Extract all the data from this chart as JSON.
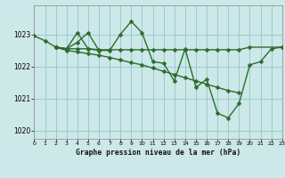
{
  "title": "Graphe pression niveau de la mer (hPa)",
  "bg_color": "#cce8e8",
  "grid_color": "#99cccc",
  "line_color": "#2d6b2d",
  "xlim": [
    0,
    23
  ],
  "ylim": [
    1019.75,
    1023.9
  ],
  "yticks": [
    1020,
    1021,
    1022,
    1023
  ],
  "xtick_pos": [
    0,
    1,
    2,
    3,
    4,
    5,
    6,
    7,
    8,
    9,
    10,
    11,
    12,
    13,
    14,
    15,
    16,
    17,
    18,
    19,
    20,
    21,
    22,
    23
  ],
  "xtick_labels": [
    "0",
    "1",
    "2",
    "3",
    "4",
    "5",
    "6",
    "7",
    "8",
    "9",
    "10",
    "11",
    "12",
    "13",
    "14",
    "15",
    "16",
    "17",
    "18",
    "19",
    "20",
    "21",
    "22",
    "23"
  ],
  "series": [
    {
      "x": [
        0,
        1,
        2,
        3,
        4,
        5,
        6,
        7,
        8,
        9,
        10,
        11,
        12,
        13,
        14,
        15,
        16,
        17,
        18,
        19,
        20,
        21,
        22,
        23
      ],
      "y": [
        1022.95,
        1022.8,
        1022.6,
        1022.55,
        1022.75,
        1023.05,
        1022.5,
        1022.5,
        1023.0,
        1023.4,
        1023.05,
        1022.15,
        1022.1,
        1021.55,
        1022.55,
        1021.35,
        1021.6,
        1020.55,
        1020.4,
        1020.85,
        1022.05,
        1022.15,
        1022.55,
        1022.6
      ]
    },
    {
      "x": [
        2,
        3,
        4,
        5,
        6
      ],
      "y": [
        1022.6,
        1022.55,
        1023.05,
        1022.55,
        1022.5
      ]
    },
    {
      "x": [
        2,
        3,
        4,
        5,
        6,
        7,
        8,
        9,
        10,
        11,
        12,
        13,
        14,
        15,
        16,
        17,
        18,
        19,
        20,
        23
      ],
      "y": [
        1022.6,
        1022.55,
        1022.55,
        1022.55,
        1022.52,
        1022.52,
        1022.52,
        1022.52,
        1022.52,
        1022.52,
        1022.52,
        1022.52,
        1022.52,
        1022.52,
        1022.52,
        1022.52,
        1022.52,
        1022.52,
        1022.6,
        1022.6
      ]
    },
    {
      "x": [
        2,
        3,
        4,
        5,
        6,
        7,
        8,
        9,
        10,
        11,
        12,
        13,
        14,
        15,
        16,
        17,
        18,
        19
      ],
      "y": [
        1022.6,
        1022.5,
        1022.45,
        1022.4,
        1022.35,
        1022.28,
        1022.2,
        1022.12,
        1022.05,
        1021.95,
        1021.85,
        1021.75,
        1021.65,
        1021.55,
        1021.45,
        1021.35,
        1021.25,
        1021.18
      ]
    }
  ]
}
